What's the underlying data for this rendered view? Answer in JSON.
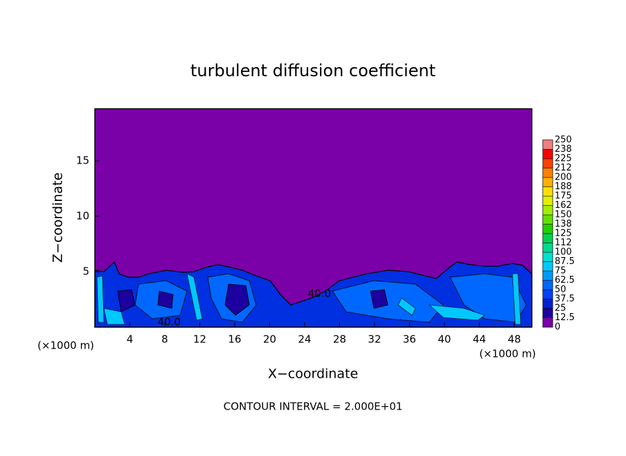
{
  "chart_data": {
    "type": "contour",
    "title": "turbulent diffusion coefficient",
    "x_label": "X−coordinate",
    "y_label": "Z−coordinate",
    "x_unit_left": "(×1000 m)",
    "x_unit_right": "(×1000 m)",
    "footer": "CONTOUR INTERVAL = 2.000E+01",
    "xlim": [
      0,
      50
    ],
    "ylim": [
      0,
      19.7
    ],
    "xticks": [
      4,
      8,
      12,
      16,
      20,
      24,
      28,
      32,
      36,
      40,
      44,
      48
    ],
    "yticks": [
      5,
      10,
      15
    ],
    "contour_labels": [
      {
        "text": "40.0",
        "x": 8.5,
        "y": 0.45
      },
      {
        "text": "40.0",
        "x": 25.7,
        "y": 3.0
      }
    ],
    "colorbar": {
      "levels": [
        0,
        12.5,
        25,
        37.5,
        50,
        62.5,
        75,
        87.5,
        100,
        {
          "value": 112.5,
          "label": "112"
        },
        125,
        {
          "value": 137.5,
          "label": "138"
        },
        150,
        {
          "value": 162.5,
          "label": "162"
        },
        175,
        {
          "value": 187.5,
          "label": "188"
        },
        200,
        {
          "value": 212.5,
          "label": "212"
        },
        225,
        {
          "value": 237.5,
          "label": "238"
        },
        250
      ],
      "colors": [
        "#7a00a8",
        "#1c00a0",
        "#0020d0",
        "#0040ff",
        "#0068ff",
        "#0098ff",
        "#00c8ff",
        "#00e0d0",
        "#00d890",
        "#00d050",
        "#20d000",
        "#60e000",
        "#a0f000",
        "#e0f000",
        "#ffe000",
        "#ffb000",
        "#ff8000",
        "#ff4000",
        "#ff0000",
        "#f08080"
      ]
    }
  }
}
